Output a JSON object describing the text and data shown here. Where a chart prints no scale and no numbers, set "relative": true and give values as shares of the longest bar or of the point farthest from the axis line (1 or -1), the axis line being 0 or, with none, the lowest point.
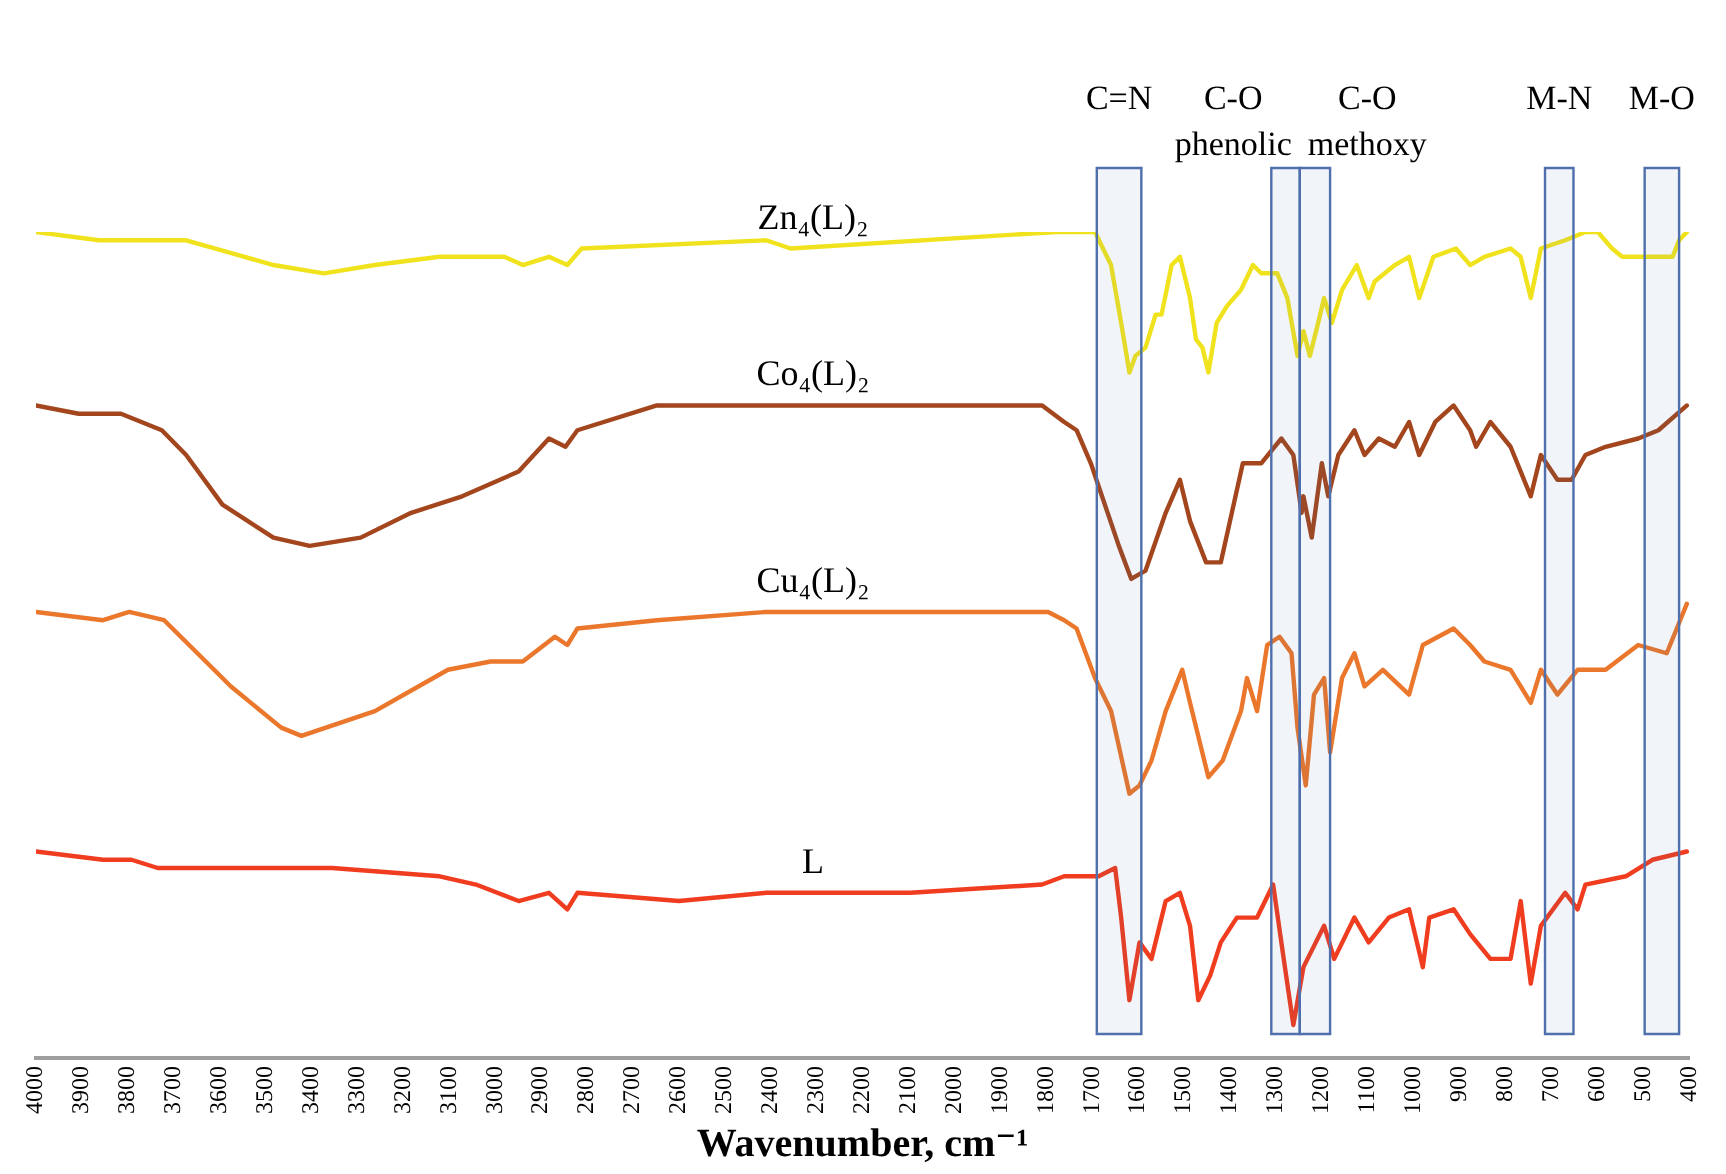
{
  "chart_data": {
    "type": "line",
    "relative": true,
    "xlabel": "Wavenumber, cm⁻¹",
    "xlim": [
      4000,
      400
    ],
    "xticks": [
      4000,
      3900,
      3800,
      3700,
      3600,
      3500,
      3400,
      3300,
      3200,
      3100,
      3000,
      2900,
      2800,
      2700,
      2600,
      2500,
      2400,
      2300,
      2200,
      2100,
      2000,
      1900,
      1800,
      1700,
      1600,
      1500,
      1400,
      1300,
      1200,
      1100,
      1000,
      900,
      800,
      700,
      600,
      500,
      400
    ],
    "grid": false,
    "legend": false,
    "marker": "none",
    "line_style": "solid",
    "series": [
      {
        "name": "Zn₄(L)₂",
        "color": "#f0e31e",
        "x": [
          4000,
          3863,
          3797,
          3673,
          3483,
          3373,
          3262,
          3121,
          3059,
          2980,
          2940,
          2883,
          2843,
          2812,
          2410,
          2357,
          1778,
          1761,
          1707,
          1694,
          1659,
          1637,
          1619,
          1606,
          1584,
          1562,
          1549,
          1527,
          1509,
          1487,
          1474,
          1460,
          1447,
          1429,
          1407,
          1376,
          1350,
          1332,
          1297,
          1275,
          1253,
          1240,
          1226,
          1208,
          1195,
          1178,
          1156,
          1124,
          1098,
          1085,
          1041,
          1010,
          988,
          957,
          908,
          877,
          846,
          789,
          767,
          745,
          723,
          670,
          626,
          599,
          568,
          546,
          467,
          436,
          422,
          405
        ],
        "values": [
          1.0,
          0.99,
          0.99,
          0.99,
          0.96,
          0.95,
          0.96,
          0.97,
          0.97,
          0.97,
          0.96,
          0.97,
          0.96,
          0.98,
          0.99,
          0.98,
          1.0,
          1.0,
          1.0,
          1.0,
          0.96,
          0.89,
          0.83,
          0.85,
          0.86,
          0.9,
          0.9,
          0.96,
          0.97,
          0.92,
          0.87,
          0.86,
          0.83,
          0.89,
          0.91,
          0.93,
          0.96,
          0.95,
          0.95,
          0.92,
          0.85,
          0.88,
          0.85,
          0.89,
          0.92,
          0.89,
          0.93,
          0.96,
          0.92,
          0.94,
          0.96,
          0.97,
          0.92,
          0.97,
          0.98,
          0.96,
          0.97,
          0.98,
          0.97,
          0.92,
          0.98,
          0.99,
          1.0,
          1.0,
          0.98,
          0.97,
          0.97,
          0.97,
          0.99,
          1.0
        ]
      },
      {
        "name": "Co₄(L)₂",
        "color": "#a3461d",
        "x": [
          4000,
          3907,
          3815,
          3726,
          3673,
          3594,
          3483,
          3404,
          3293,
          3183,
          3072,
          2949,
          2883,
          2847,
          2821,
          2648,
          2410,
          2096,
          1937,
          1809,
          1761,
          1734,
          1703,
          1642,
          1615,
          1584,
          1540,
          1509,
          1487,
          1452,
          1420,
          1372,
          1332,
          1288,
          1262,
          1244,
          1240,
          1222,
          1200,
          1186,
          1164,
          1129,
          1107,
          1076,
          1041,
          1010,
          988,
          953,
          913,
          877,
          864,
          833,
          789,
          745,
          723,
          687,
          656,
          626,
          582,
          511,
          467,
          405
        ],
        "values": [
          0.79,
          0.78,
          0.78,
          0.76,
          0.73,
          0.67,
          0.63,
          0.62,
          0.63,
          0.66,
          0.68,
          0.71,
          0.75,
          0.74,
          0.76,
          0.79,
          0.79,
          0.79,
          0.79,
          0.79,
          0.77,
          0.76,
          0.72,
          0.62,
          0.58,
          0.59,
          0.66,
          0.7,
          0.65,
          0.6,
          0.6,
          0.72,
          0.72,
          0.75,
          0.73,
          0.66,
          0.68,
          0.63,
          0.72,
          0.68,
          0.73,
          0.76,
          0.73,
          0.75,
          0.74,
          0.77,
          0.73,
          0.77,
          0.79,
          0.76,
          0.74,
          0.77,
          0.74,
          0.68,
          0.73,
          0.7,
          0.7,
          0.73,
          0.74,
          0.75,
          0.76,
          0.79
        ]
      },
      {
        "name": "Cu₄(L)₂",
        "color": "#ea772b",
        "x": [
          4000,
          3854,
          3797,
          3721,
          3576,
          3466,
          3422,
          3262,
          3103,
          3010,
          2940,
          2870,
          2843,
          2821,
          2648,
          2410,
          2096,
          1906,
          1796,
          1761,
          1734,
          1694,
          1659,
          1619,
          1597,
          1571,
          1540,
          1504,
          1487,
          1447,
          1416,
          1376,
          1363,
          1341,
          1319,
          1292,
          1266,
          1253,
          1235,
          1217,
          1195,
          1182,
          1156,
          1129,
          1107,
          1067,
          1010,
          980,
          913,
          877,
          846,
          789,
          745,
          723,
          687,
          643,
          582,
          511,
          449,
          427,
          405
        ],
        "values": [
          0.54,
          0.53,
          0.54,
          0.53,
          0.45,
          0.4,
          0.39,
          0.42,
          0.47,
          0.48,
          0.48,
          0.51,
          0.5,
          0.52,
          0.53,
          0.54,
          0.54,
          0.54,
          0.54,
          0.53,
          0.52,
          0.46,
          0.42,
          0.32,
          0.33,
          0.36,
          0.42,
          0.47,
          0.43,
          0.34,
          0.36,
          0.42,
          0.46,
          0.42,
          0.5,
          0.51,
          0.49,
          0.4,
          0.33,
          0.44,
          0.46,
          0.37,
          0.46,
          0.49,
          0.45,
          0.47,
          0.44,
          0.5,
          0.52,
          0.5,
          0.48,
          0.47,
          0.43,
          0.47,
          0.44,
          0.47,
          0.47,
          0.5,
          0.49,
          0.52,
          0.55
        ]
      },
      {
        "name": "L",
        "color": "#f03c1f",
        "x": [
          4000,
          3854,
          3792,
          3735,
          3514,
          3355,
          3121,
          3042,
          2949,
          2883,
          2843,
          2821,
          2600,
          2410,
          2096,
          1809,
          1761,
          1686,
          1650,
          1637,
          1619,
          1597,
          1571,
          1540,
          1509,
          1487,
          1469,
          1443,
          1420,
          1385,
          1341,
          1306,
          1283,
          1262,
          1240,
          1195,
          1173,
          1129,
          1098,
          1054,
          1010,
          980,
          966,
          913,
          877,
          833,
          789,
          767,
          745,
          723,
          670,
          643,
          626,
          538,
          480,
          405
        ],
        "values": [
          0.25,
          0.24,
          0.24,
          0.23,
          0.23,
          0.23,
          0.22,
          0.21,
          0.19,
          0.2,
          0.18,
          0.2,
          0.19,
          0.2,
          0.2,
          0.21,
          0.22,
          0.22,
          0.23,
          0.17,
          0.07,
          0.14,
          0.12,
          0.19,
          0.2,
          0.16,
          0.07,
          0.1,
          0.14,
          0.17,
          0.17,
          0.21,
          0.12,
          0.04,
          0.11,
          0.16,
          0.12,
          0.17,
          0.14,
          0.17,
          0.18,
          0.11,
          0.17,
          0.18,
          0.15,
          0.12,
          0.12,
          0.19,
          0.09,
          0.16,
          0.2,
          0.18,
          0.21,
          0.22,
          0.24,
          0.25
        ]
      }
    ],
    "bands": [
      {
        "axis": "x",
        "from": 1690,
        "to": 1593,
        "label": "C=N",
        "color": "#4f6fad"
      },
      {
        "axis": "x",
        "from": 1310,
        "to": 1248,
        "label": "C-O phenolic",
        "color": "#4f6fad"
      },
      {
        "axis": "x",
        "from": 1248,
        "to": 1182,
        "label": "C-O methoxy",
        "color": "#4f6fad"
      },
      {
        "axis": "x",
        "from": 714,
        "to": 652,
        "label": "M-N",
        "color": "#4f6fad"
      },
      {
        "axis": "x",
        "from": 497,
        "to": 422,
        "label": "M-O",
        "color": "#4f6fad"
      }
    ]
  }
}
